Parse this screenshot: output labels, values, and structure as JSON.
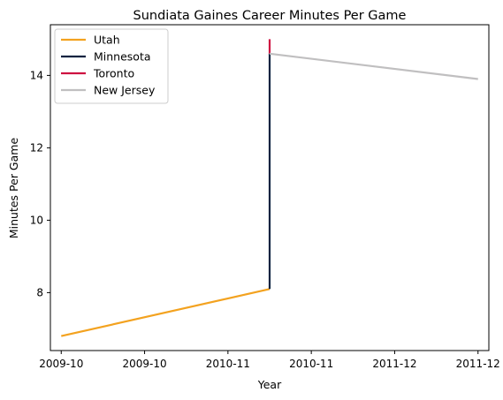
{
  "chart_data": {
    "type": "line",
    "title": "Sundiata Gaines Career Minutes Per Game",
    "xlabel": "Year",
    "ylabel": "Minutes Per Game",
    "xlim": [
      -0.13,
      5.13
    ],
    "ylim": [
      6.4,
      15.4
    ],
    "x_ticks": [
      {
        "pos": 0,
        "label": "2009-10"
      },
      {
        "pos": 1,
        "label": "2009-10"
      },
      {
        "pos": 2,
        "label": "2010-11"
      },
      {
        "pos": 3,
        "label": "2010-11"
      },
      {
        "pos": 4,
        "label": "2011-12"
      },
      {
        "pos": 5,
        "label": "2011-12"
      }
    ],
    "y_ticks": [
      8,
      10,
      12,
      14
    ],
    "grid": false,
    "legend_position": "top-left",
    "series": [
      {
        "name": "Utah",
        "color": "#f3a21f",
        "points": [
          [
            0,
            6.8
          ],
          [
            2.5,
            8.1
          ]
        ]
      },
      {
        "name": "Minnesota",
        "color": "#0c2340",
        "points": [
          [
            2.5,
            8.1
          ],
          [
            2.5,
            14.6
          ]
        ]
      },
      {
        "name": "Toronto",
        "color": "#ce1141",
        "points": [
          [
            2.5,
            14.6
          ],
          [
            2.5,
            15.0
          ]
        ]
      },
      {
        "name": "New Jersey",
        "color": "#c0bfc0",
        "points": [
          [
            2.5,
            14.6
          ],
          [
            5,
            13.9
          ]
        ]
      }
    ]
  }
}
